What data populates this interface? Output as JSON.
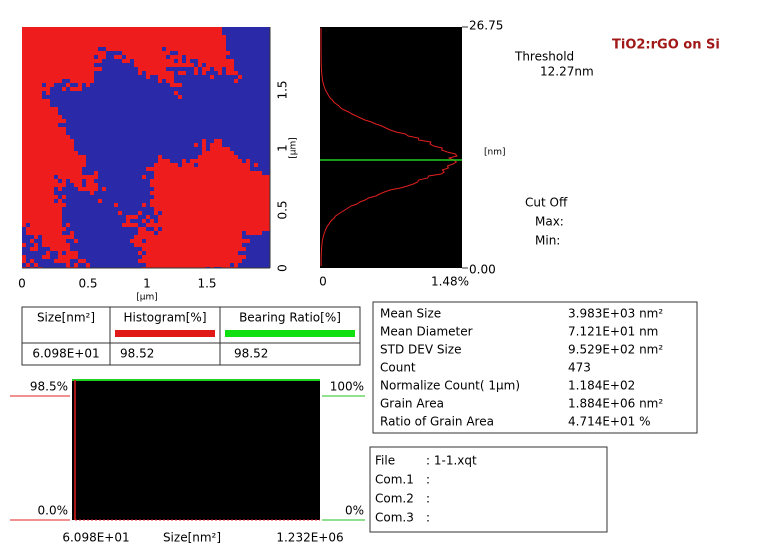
{
  "header": {
    "title": "TiO2:rGO on Si"
  },
  "image_axes": {
    "x_ticks": [
      "0",
      "0.5",
      "1",
      "1.5"
    ],
    "x_unit": "[μm]",
    "y_ticks": [
      "0",
      "0.5",
      "1",
      "1.5"
    ],
    "y_unit": "[μm]"
  },
  "height_histogram": {
    "top": "26.75",
    "unit": "[nm]",
    "bottom": "0.00",
    "x_min": "0",
    "x_max": "1.48%"
  },
  "threshold": {
    "label": "Threshold",
    "value": "12.27nm"
  },
  "cut_off": {
    "label": "Cut Off",
    "max": "Max:",
    "min": "Min:"
  },
  "table": {
    "header": [
      "Size[nm²]",
      "Histogram[%]",
      "Bearing Ratio[%]"
    ],
    "rows": [
      [
        "6.098E+01",
        "98.52",
        "98.52"
      ]
    ]
  },
  "stats": {
    "rows": [
      [
        "Mean Size",
        "3.983E+03 nm²"
      ],
      [
        "Mean Diameter",
        "7.121E+01 nm"
      ],
      [
        "STD DEV Size",
        "9.529E+02 nm²"
      ],
      [
        "Count",
        "473"
      ],
      [
        "Normalize Count(   1μm)",
        "1.184E+02"
      ],
      [
        "Grain Area",
        "1.884E+06 nm²"
      ],
      [
        "Ratio of Grain Area",
        "4.714E+01 %"
      ]
    ]
  },
  "bearing_plot": {
    "left_top": "98.5%",
    "left_bottom": "0.0%",
    "right_top": "100%",
    "right_bottom": "0%",
    "x_min": "6.098E+01",
    "x_label": "Size[nm²]",
    "x_max": "1.232E+06"
  },
  "file_info": {
    "rows": [
      [
        "File",
        ": 1-1.xqt"
      ],
      [
        "Com.1",
        ":"
      ],
      [
        "Com.2",
        ":"
      ],
      [
        "Com.3",
        ":"
      ]
    ]
  }
}
